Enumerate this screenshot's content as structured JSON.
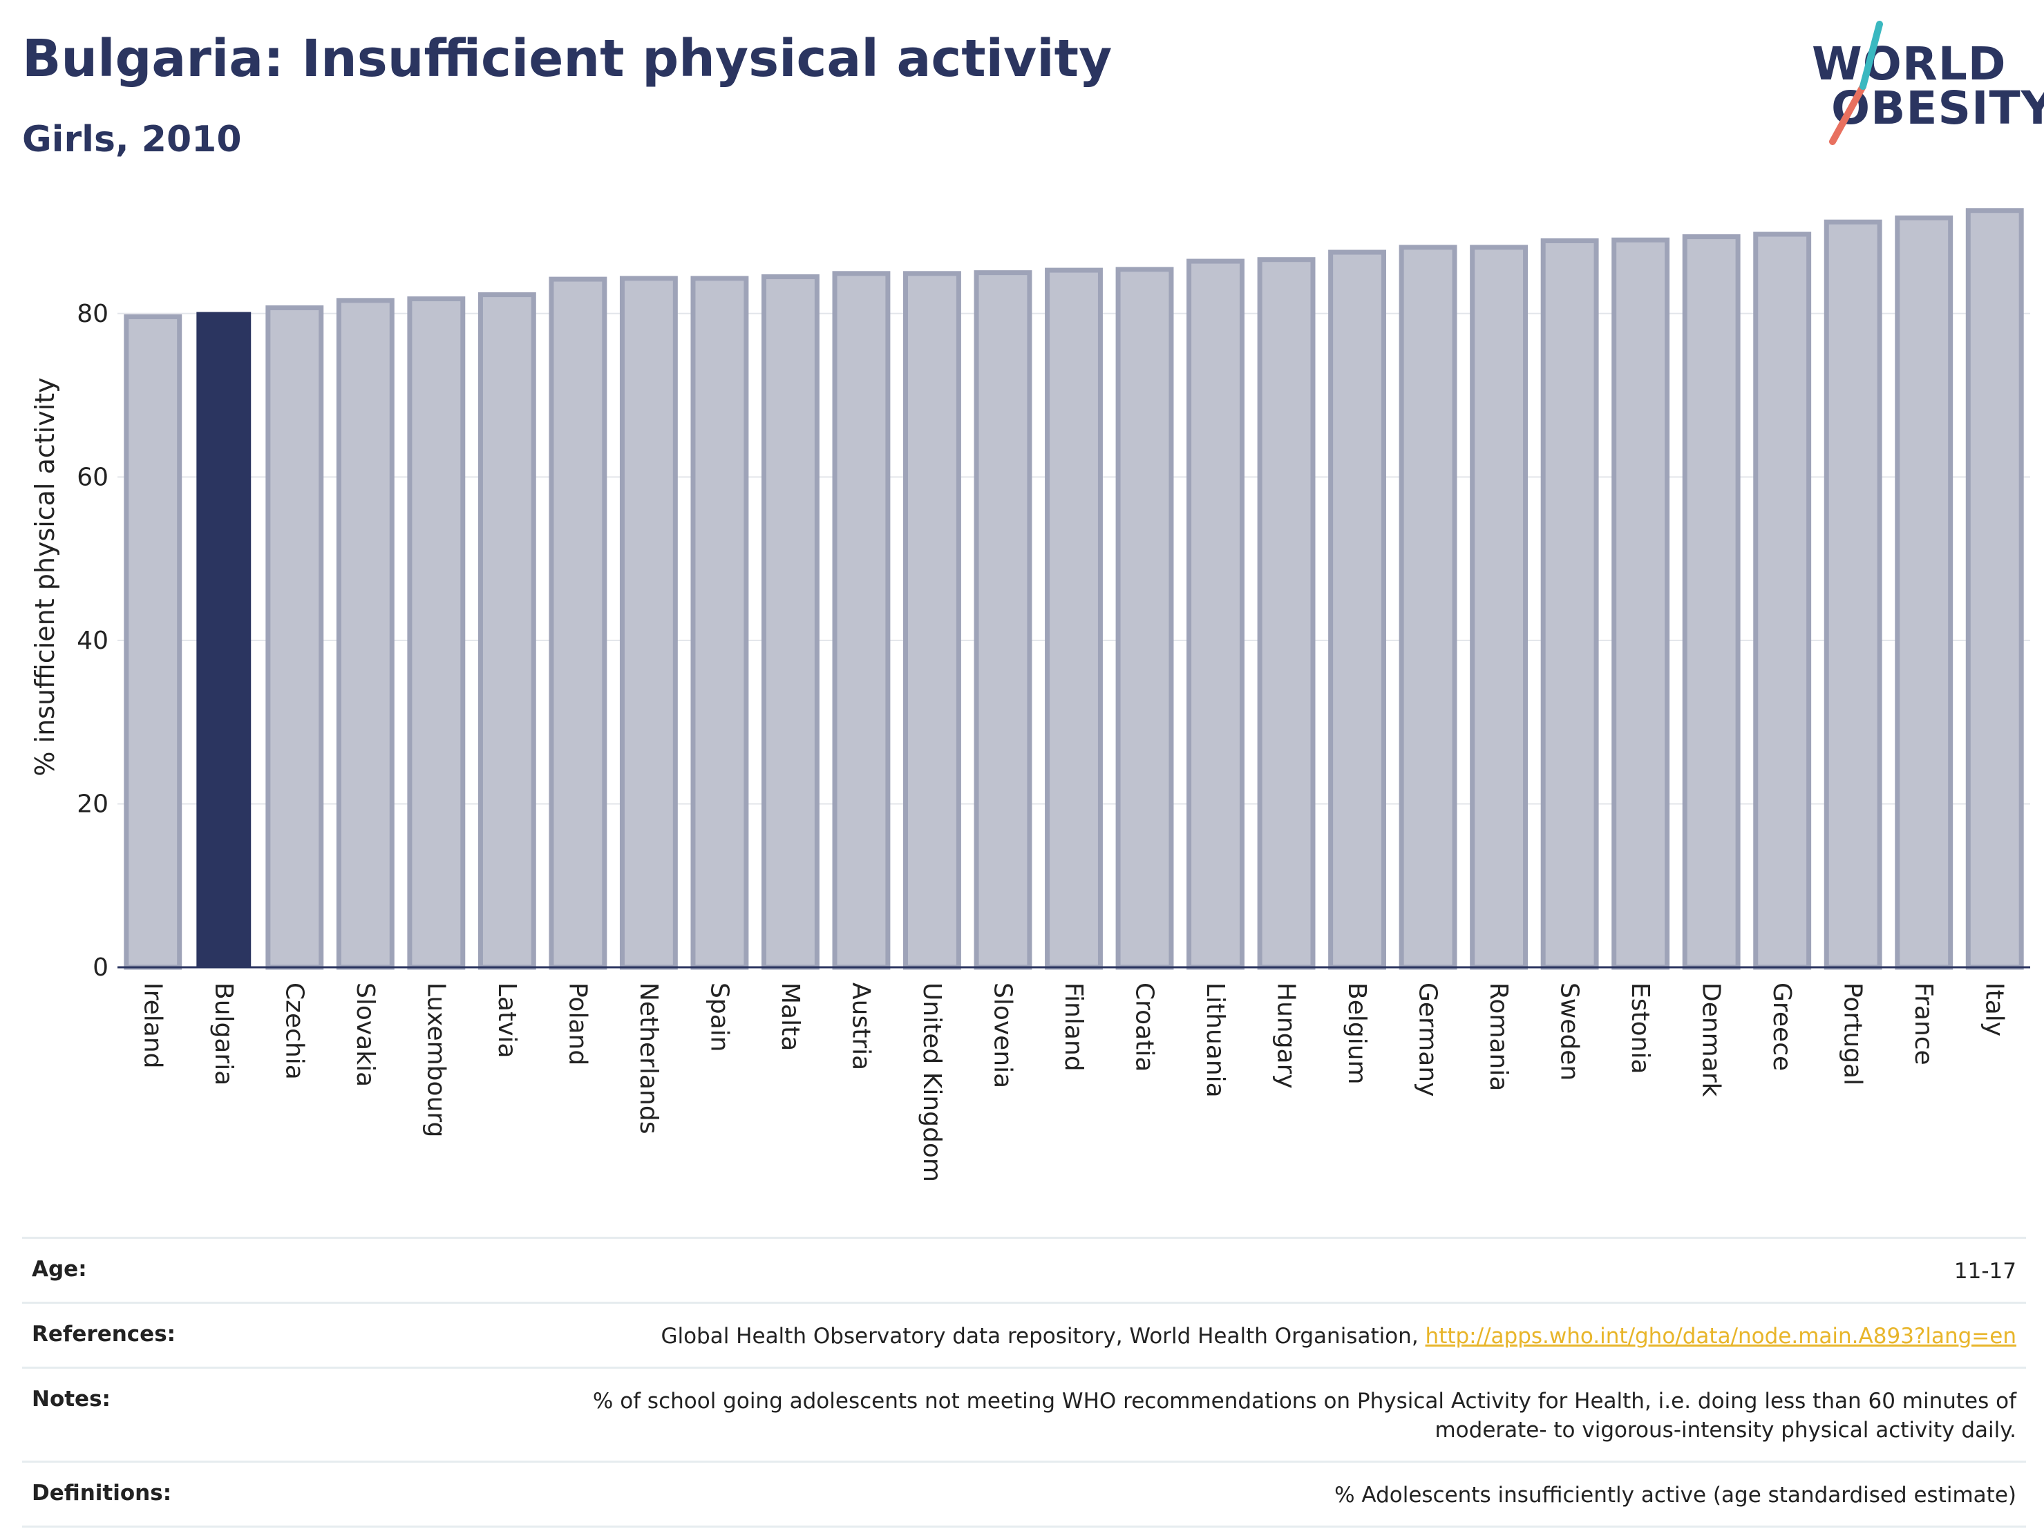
{
  "header": {
    "title": "Bulgaria: Insufficient physical activity",
    "subtitle": "Girls, 2010"
  },
  "logo": {
    "line1": "WORLD",
    "line2": "OBESITY",
    "colors": {
      "text": "#2b3560",
      "slash_teal": "#3ab8c0",
      "slash_coral": "#e8705f"
    }
  },
  "colors": {
    "highlight_bar": "#2b3560",
    "other_bar_fill": "#bfc2cf",
    "other_bar_stroke": "#9ea3b8",
    "gridline": "#e3e5ea",
    "axis": "#2b3560"
  },
  "chart_data": {
    "type": "bar",
    "title": "Bulgaria: Insufficient physical activity",
    "subtitle": "Girls, 2010",
    "ylabel": "% insufficient physical activity",
    "xlabel": "",
    "ylim": [
      0,
      93
    ],
    "yticks": [
      0,
      20,
      40,
      60,
      80
    ],
    "grid": true,
    "legend": "none",
    "highlight": "Bulgaria",
    "categories": [
      "Ireland",
      "Bulgaria",
      "Czechia",
      "Slovakia",
      "Luxembourg",
      "Latvia",
      "Poland",
      "Netherlands",
      "Spain",
      "Malta",
      "Austria",
      "United Kingdom",
      "Slovenia",
      "Finland",
      "Croatia",
      "Lithuania",
      "Hungary",
      "Belgium",
      "Germany",
      "Romania",
      "Sweden",
      "Estonia",
      "Denmark",
      "Greece",
      "Portugal",
      "France",
      "Italy"
    ],
    "values": [
      79.6,
      80.1,
      80.7,
      81.6,
      81.8,
      82.3,
      84.2,
      84.3,
      84.3,
      84.5,
      84.9,
      84.9,
      85.0,
      85.3,
      85.4,
      86.4,
      86.6,
      87.5,
      88.1,
      88.1,
      88.9,
      89.0,
      89.4,
      89.7,
      91.2,
      91.7,
      92.6
    ]
  },
  "info": {
    "rows": [
      {
        "key": "Age:",
        "value": "11-17"
      },
      {
        "key": "References:",
        "value": "Global Health Observatory data repository, World Health Organisation, ",
        "link": "http://apps.who.int/gho/data/node.main.A893?lang=en"
      },
      {
        "key": "Notes:",
        "value": "% of school going adolescents not meeting WHO recommendations on Physical Activity for Health, i.e. doing less than 60 minutes of moderate- to vigorous-intensity physical activity daily."
      },
      {
        "key": "Definitions:",
        "value": "% Adolescents insufficiently active (age standardised estimate)"
      }
    ]
  }
}
